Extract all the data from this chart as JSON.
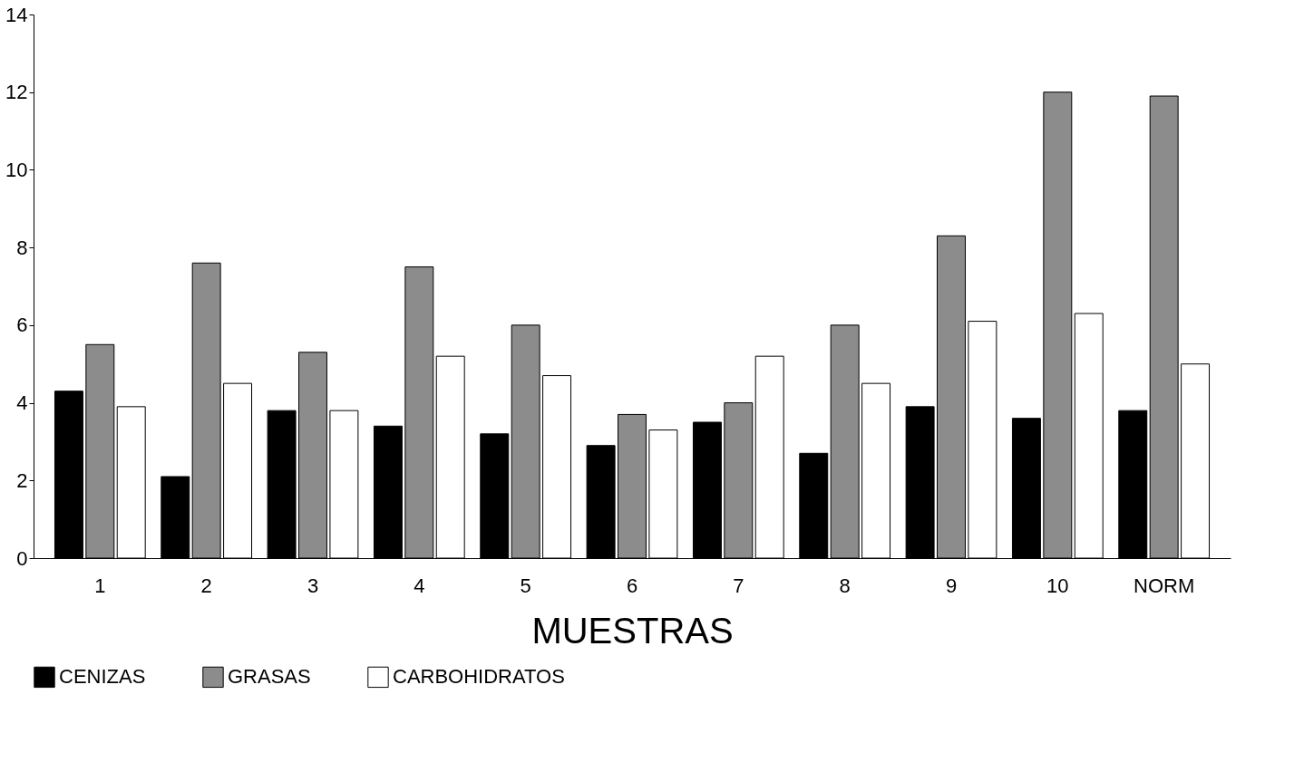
{
  "chart_data": {
    "type": "bar",
    "xlabel": "MUESTRAS",
    "categories": [
      "1",
      "2",
      "3",
      "4",
      "5",
      "6",
      "7",
      "8",
      "9",
      "10",
      "NORM"
    ],
    "series": [
      {
        "name": "CENIZAS",
        "color": "#000000",
        "values": [
          4.3,
          2.1,
          3.8,
          3.4,
          3.2,
          2.9,
          3.5,
          2.7,
          3.9,
          3.6,
          3.8
        ]
      },
      {
        "name": "GRASAS",
        "color": "#8c8c8c",
        "values": [
          5.5,
          7.6,
          5.3,
          7.5,
          6.0,
          3.7,
          4.0,
          6.0,
          8.3,
          12.0,
          11.9
        ]
      },
      {
        "name": "CARBOHIDRATOS",
        "color": "#ffffff",
        "values": [
          3.9,
          4.5,
          3.8,
          5.2,
          4.7,
          3.3,
          5.2,
          4.5,
          6.1,
          6.3,
          5.0
        ]
      }
    ],
    "ylim": [
      0,
      14
    ],
    "yticks": [
      0,
      2,
      4,
      6,
      8,
      10,
      12,
      14
    ],
    "legend": "bottom",
    "grid": false
  }
}
